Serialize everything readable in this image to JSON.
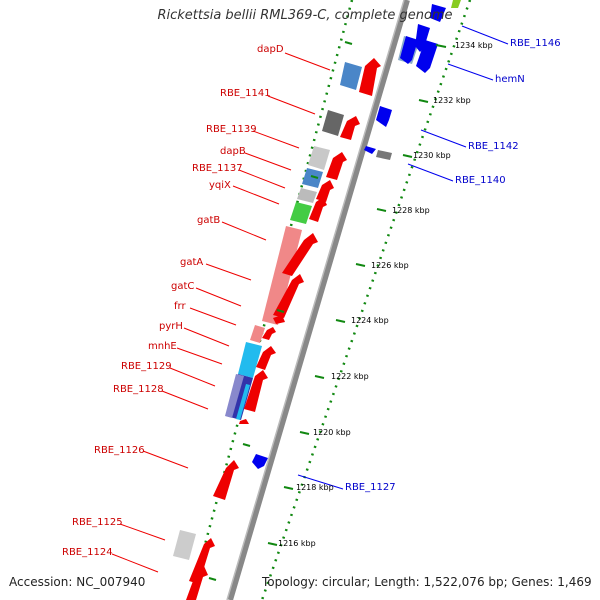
{
  "header": {
    "title": "Rickettsia bellii RML369-C, complete genome"
  },
  "footer": {
    "accession": "Accession: NC_007940",
    "topology": "Topology: circular; Length: 1,522,076 bp; Genes: 1,469"
  },
  "colors": {
    "forward_cds": "#ff0000",
    "reverse_cds": "#0000ff",
    "forward_label": "#cc0000",
    "reverse_label": "#0000cc",
    "backbone": "#888888",
    "tick_marks": "#118811"
  },
  "ticks": [
    "1234 kbp",
    "1232 kbp",
    "1230 kbp",
    "1228 kbp",
    "1226 kbp",
    "1224 kbp",
    "1222 kbp",
    "1220 kbp",
    "1218 kbp",
    "1216 kbp"
  ],
  "forward_genes": [
    {
      "label": "dapD"
    },
    {
      "label": "RBE_1141"
    },
    {
      "label": "RBE_1139"
    },
    {
      "label": "dapB"
    },
    {
      "label": "RBE_1137"
    },
    {
      "label": "yqiX"
    },
    {
      "label": "gatB"
    },
    {
      "label": "gatA"
    },
    {
      "label": "gatC"
    },
    {
      "label": "frr"
    },
    {
      "label": "pyrH"
    },
    {
      "label": "mnhE"
    },
    {
      "label": "RBE_1129"
    },
    {
      "label": "RBE_1128"
    },
    {
      "label": "RBE_1126"
    },
    {
      "label": "RBE_1125"
    },
    {
      "label": "RBE_1124"
    }
  ],
  "reverse_genes": [
    {
      "label": "RBE_1146"
    },
    {
      "label": "hemN"
    },
    {
      "label": "RBE_1142"
    },
    {
      "label": "RBE_1140"
    },
    {
      "label": "RBE_1127"
    }
  ]
}
